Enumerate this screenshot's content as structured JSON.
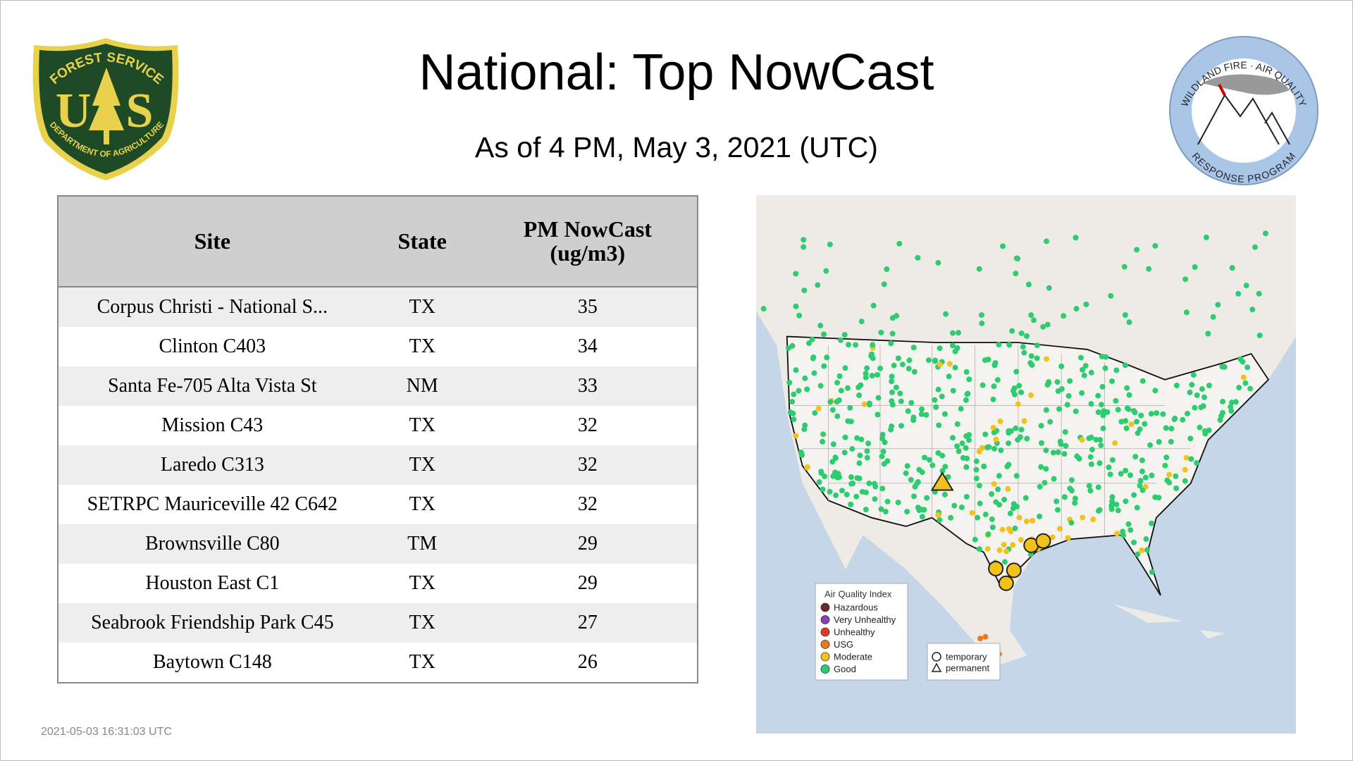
{
  "header": {
    "title": "National: Top NowCast",
    "subtitle": "As of  4 PM, May  3, 2021 (UTC)"
  },
  "logos": {
    "left": {
      "top": "FOREST SERVICE",
      "letters": [
        "U",
        "S"
      ],
      "bottom": "DEPARTMENT OF AGRICULTURE"
    },
    "right": {
      "top": "WILDLAND FIRE · AIR QUALITY",
      "bottom": "RESPONSE PROGRAM"
    }
  },
  "table": {
    "headers": [
      "Site",
      "State",
      "PM NowCast (ug/m3)"
    ],
    "rows": [
      [
        "Corpus Christi - National S...",
        "TX",
        35
      ],
      [
        "Clinton C403",
        "TX",
        34
      ],
      [
        "Santa Fe-705 Alta Vista St",
        "NM",
        33
      ],
      [
        "Mission C43",
        "TX",
        32
      ],
      [
        "Laredo C313",
        "TX",
        32
      ],
      [
        "SETRPC Mauriceville 42 C642",
        "TX",
        32
      ],
      [
        "Brownsville C80",
        "TM",
        29
      ],
      [
        "Houston East C1",
        "TX",
        29
      ],
      [
        "Seabrook Friendship Park C45",
        "TX",
        27
      ],
      [
        "Baytown C148",
        "TX",
        26
      ]
    ]
  },
  "map": {
    "legend": {
      "title": "Air Quality Index",
      "items": [
        "Hazardous",
        "Very Unhealthy",
        "Unhealthy",
        "USG",
        "Moderate",
        "Good"
      ]
    },
    "shapes": [
      "temporary",
      "permanent"
    ]
  },
  "footer": {
    "timestamp": "2021-05-03 16:31:03 UTC"
  }
}
